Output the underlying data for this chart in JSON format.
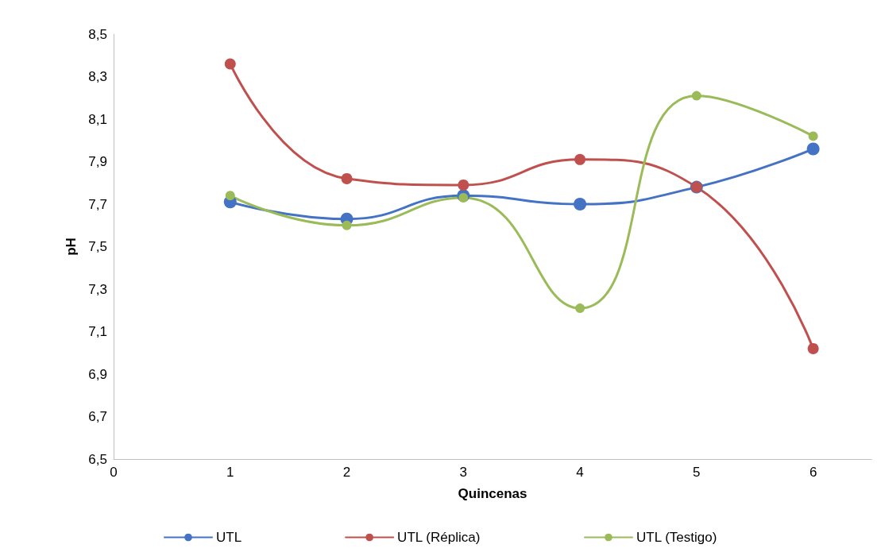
{
  "chart_data": {
    "type": "line",
    "xlabel": "Quincenas",
    "ylabel": "pH",
    "x": [
      1,
      2,
      3,
      4,
      5,
      6
    ],
    "series": [
      {
        "name": "UTL",
        "color": "#4472c4",
        "values": [
          7.71,
          7.63,
          7.74,
          7.7,
          7.78,
          7.96
        ]
      },
      {
        "name": "UTL (Réplica)",
        "color": "#c0504d",
        "values": [
          8.36,
          7.82,
          7.79,
          7.91,
          7.78,
          7.02
        ]
      },
      {
        "name": "UTL (Testigo)",
        "color": "#9bbb59",
        "values": [
          7.74,
          7.6,
          7.73,
          7.21,
          8.21,
          8.02
        ]
      }
    ],
    "xlim": [
      0,
      6.5
    ],
    "xticks": [
      0,
      1,
      2,
      3,
      4,
      5,
      6
    ],
    "ylim": [
      6.5,
      8.5
    ],
    "yticks": [
      {
        "value": 6.5,
        "label": "6,5"
      },
      {
        "value": 6.7,
        "label": "6,7"
      },
      {
        "value": 6.9,
        "label": "6,9"
      },
      {
        "value": 7.1,
        "label": "7,1"
      },
      {
        "value": 7.3,
        "label": "7,3"
      },
      {
        "value": 7.5,
        "label": "7,5"
      },
      {
        "value": 7.7,
        "label": "7,7"
      },
      {
        "value": 7.9,
        "label": "7,9"
      },
      {
        "value": 8.1,
        "label": "8,1"
      },
      {
        "value": 8.3,
        "label": "8,3"
      },
      {
        "value": 8.5,
        "label": "8,5"
      }
    ],
    "grid": false,
    "legend": "bottom",
    "marker": "circle",
    "line_style": "solid"
  }
}
